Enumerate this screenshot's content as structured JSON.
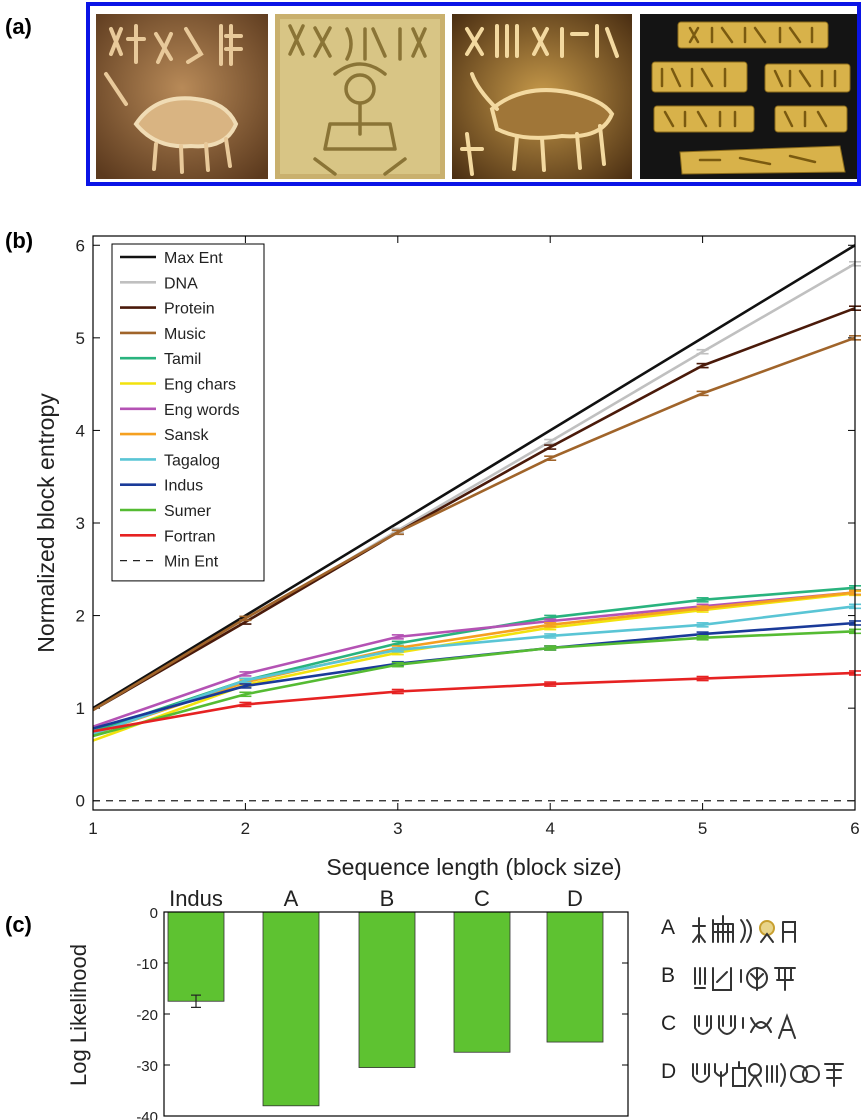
{
  "panels": {
    "a": "(a)",
    "b": "(b)",
    "c": "(c)"
  },
  "seal_images": [
    "unicorn-seal",
    "seated-figure-seal",
    "bull-seal",
    "inscribed-tablets"
  ],
  "chart_data": [
    {
      "type": "line",
      "xlabel": "Sequence length (block size)",
      "ylabel": "Normalized block entropy",
      "x": [
        1,
        2,
        3,
        4,
        5,
        6
      ],
      "xlim": [
        1,
        6
      ],
      "ylim": [
        -0.1,
        6.1
      ],
      "xticks": [
        1,
        2,
        3,
        4,
        5,
        6
      ],
      "yticks": [
        0,
        1,
        2,
        3,
        4,
        5,
        6
      ],
      "legend_position": "top-left",
      "series": [
        {
          "name": "Max Ent",
          "color": "#111111",
          "values": [
            1.0,
            2.0,
            3.0,
            4.0,
            5.0,
            6.0
          ]
        },
        {
          "name": "DNA",
          "color": "#c0c0c0",
          "values": [
            0.98,
            1.93,
            2.92,
            3.88,
            4.85,
            5.8
          ]
        },
        {
          "name": "Protein",
          "color": "#4a1a0a",
          "values": [
            0.98,
            1.93,
            2.9,
            3.82,
            4.7,
            5.32
          ]
        },
        {
          "name": "Music",
          "color": "#a0642a",
          "values": [
            0.98,
            1.97,
            2.9,
            3.7,
            4.4,
            5.0
          ]
        },
        {
          "name": "Tamil",
          "color": "#29b37e",
          "values": [
            0.75,
            1.3,
            1.7,
            1.98,
            2.17,
            2.3
          ]
        },
        {
          "name": "Eng chars",
          "color": "#f2e20d",
          "values": [
            0.65,
            1.25,
            1.6,
            1.87,
            2.06,
            2.24
          ]
        },
        {
          "name": "Eng words",
          "color": "#b452b4",
          "values": [
            0.8,
            1.37,
            1.77,
            1.94,
            2.1,
            2.25
          ]
        },
        {
          "name": "Sansk",
          "color": "#f5a020",
          "values": [
            0.72,
            1.28,
            1.65,
            1.9,
            2.08,
            2.25
          ]
        },
        {
          "name": "Tagalog",
          "color": "#5ac5d5",
          "values": [
            0.72,
            1.3,
            1.63,
            1.78,
            1.9,
            2.1
          ]
        },
        {
          "name": "Indus",
          "color": "#1a3a99",
          "values": [
            0.78,
            1.24,
            1.48,
            1.65,
            1.8,
            1.92
          ]
        },
        {
          "name": "Sumer",
          "color": "#55bb33",
          "values": [
            0.7,
            1.15,
            1.47,
            1.65,
            1.76,
            1.83
          ]
        },
        {
          "name": "Fortran",
          "color": "#e62222",
          "values": [
            0.75,
            1.04,
            1.18,
            1.26,
            1.32,
            1.38
          ]
        },
        {
          "name": "Min Ent",
          "color": "#222222",
          "dashed": true,
          "values": [
            0,
            0,
            0,
            0,
            0,
            0
          ]
        }
      ]
    },
    {
      "type": "bar",
      "ylabel": "Log Likelihood",
      "categories": [
        "Indus",
        "A",
        "B",
        "C",
        "D"
      ],
      "values": [
        -17.5,
        -38,
        -30.5,
        -27.5,
        -25.5
      ],
      "ylim": [
        -40,
        0
      ],
      "yticks": [
        "0",
        "-10",
        "-20",
        "-30",
        "-40"
      ],
      "bar_color": "#5ec231",
      "error_bar_on": "Indus"
    }
  ],
  "sequence_legend": [
    {
      "label": "A"
    },
    {
      "label": "B"
    },
    {
      "label": "C"
    },
    {
      "label": "D"
    }
  ]
}
